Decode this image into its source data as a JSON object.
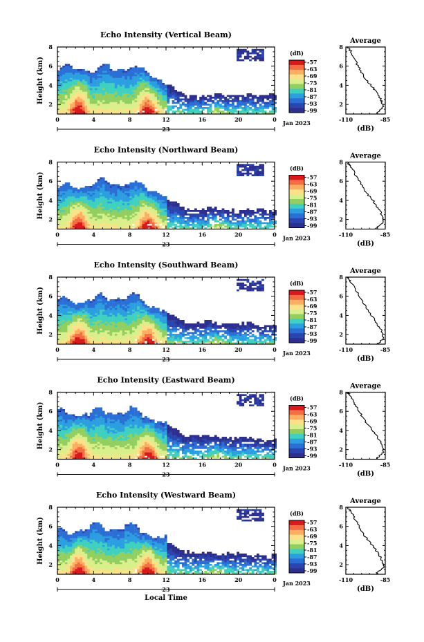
{
  "chart_data": {
    "type": "heatmap",
    "shared": {
      "xlabel": "Local Time",
      "ylabel": "Height (km)",
      "x_ticks": [
        "0",
        "4",
        "8",
        "12",
        "16",
        "20",
        "0"
      ],
      "x_range_hours": [
        0,
        24
      ],
      "date_center": "23",
      "date_right": "Jan 2023",
      "y_ticks": [
        "2",
        "4",
        "6",
        "8"
      ],
      "y_range_km": [
        1,
        8
      ],
      "colorbar_unit": "(dB)",
      "colorbar_ticks": [
        "-57",
        "-63",
        "-69",
        "-75",
        "-81",
        "-87",
        "-93",
        "-99"
      ],
      "colorbar_colors": [
        "#d7191c",
        "#f46d43",
        "#fdae61",
        "#fee08b",
        "#d9ef8b",
        "#91cf60",
        "#3fd0c0",
        "#2b9fe0",
        "#2b6fd6",
        "#2a45b0",
        "#2d2f8f"
      ],
      "profile_title": "Average",
      "profile_xlabel": "(dB)",
      "profile_x_ticks": [
        "-110",
        "-85"
      ],
      "profile_xlim": [
        -110,
        -85
      ],
      "profile_y_ticks": [
        "2",
        "4",
        "6",
        "8"
      ]
    },
    "panels": [
      {
        "title": "Echo Intensity (Vertical Beam)",
        "intensity_by_hour": [
          {
            "hour": 0,
            "top_km": 5.6
          },
          {
            "hour": 4,
            "top_km": 5.6
          },
          {
            "hour": 8,
            "top_km": 5.8
          },
          {
            "hour": 11,
            "top_km": 4.7
          },
          {
            "hour": 14,
            "top_km": 3.0
          },
          {
            "hour": 24,
            "top_km": 3.0
          }
        ],
        "profile": [
          [
            -91,
            1.0
          ],
          [
            -86,
            1.8
          ],
          [
            -88,
            2.6
          ],
          [
            -92,
            3.6
          ],
          [
            -98,
            4.8
          ],
          [
            -103,
            6.2
          ],
          [
            -107,
            7.6
          ],
          [
            -109,
            8.0
          ]
        ]
      },
      {
        "title": "Echo Intensity (Northward Beam)",
        "intensity_by_hour": [
          {
            "hour": 0,
            "top_km": 5.2
          },
          {
            "hour": 4,
            "top_km": 5.6
          },
          {
            "hour": 8,
            "top_km": 5.7
          },
          {
            "hour": 11,
            "top_km": 4.8
          },
          {
            "hour": 14,
            "top_km": 3.2
          },
          {
            "hour": 24,
            "top_km": 3.0
          }
        ],
        "profile": [
          [
            -91,
            1.0
          ],
          [
            -86,
            1.8
          ],
          [
            -88,
            2.8
          ],
          [
            -92,
            3.8
          ],
          [
            -98,
            5.0
          ],
          [
            -103,
            6.4
          ],
          [
            -107,
            7.6
          ],
          [
            -109,
            8.0
          ]
        ]
      },
      {
        "title": "Echo Intensity (Southward Beam)",
        "intensity_by_hour": [
          {
            "hour": 0,
            "top_km": 5.2
          },
          {
            "hour": 4,
            "top_km": 5.6
          },
          {
            "hour": 8,
            "top_km": 5.8
          },
          {
            "hour": 11,
            "top_km": 4.8
          },
          {
            "hour": 14,
            "top_km": 3.4
          },
          {
            "hour": 24,
            "top_km": 3.0
          }
        ],
        "profile": [
          [
            -90,
            1.0
          ],
          [
            -86,
            1.6
          ],
          [
            -88,
            2.6
          ],
          [
            -92,
            3.6
          ],
          [
            -97,
            4.8
          ],
          [
            -102,
            6.2
          ],
          [
            -107,
            7.6
          ],
          [
            -109,
            8.0
          ]
        ]
      },
      {
        "title": "Echo Intensity (Eastward Beam)",
        "intensity_by_hour": [
          {
            "hour": 0,
            "top_km": 5.6
          },
          {
            "hour": 4,
            "top_km": 5.8
          },
          {
            "hour": 8,
            "top_km": 5.9
          },
          {
            "hour": 11,
            "top_km": 5.0
          },
          {
            "hour": 14,
            "top_km": 3.6
          },
          {
            "hour": 24,
            "top_km": 3.0
          }
        ],
        "profile": [
          [
            -91,
            1.0
          ],
          [
            -86,
            1.8
          ],
          [
            -88,
            2.8
          ],
          [
            -92,
            3.8
          ],
          [
            -98,
            5.0
          ],
          [
            -103,
            6.4
          ],
          [
            -107,
            7.6
          ],
          [
            -109,
            8.0
          ]
        ]
      },
      {
        "title": "Echo Intensity (Westward Beam)",
        "intensity_by_hour": [
          {
            "hour": 0,
            "top_km": 5.2
          },
          {
            "hour": 4,
            "top_km": 5.8
          },
          {
            "hour": 8,
            "top_km": 5.8
          },
          {
            "hour": 11,
            "top_km": 4.8
          },
          {
            "hour": 14,
            "top_km": 3.4
          },
          {
            "hour": 24,
            "top_km": 3.0
          }
        ],
        "profile": [
          [
            -91,
            1.0
          ],
          [
            -86,
            1.8
          ],
          [
            -88,
            2.8
          ],
          [
            -92,
            3.8
          ],
          [
            -98,
            5.0
          ],
          [
            -103,
            6.4
          ],
          [
            -107,
            7.6
          ],
          [
            -109,
            8.0
          ]
        ]
      }
    ]
  }
}
